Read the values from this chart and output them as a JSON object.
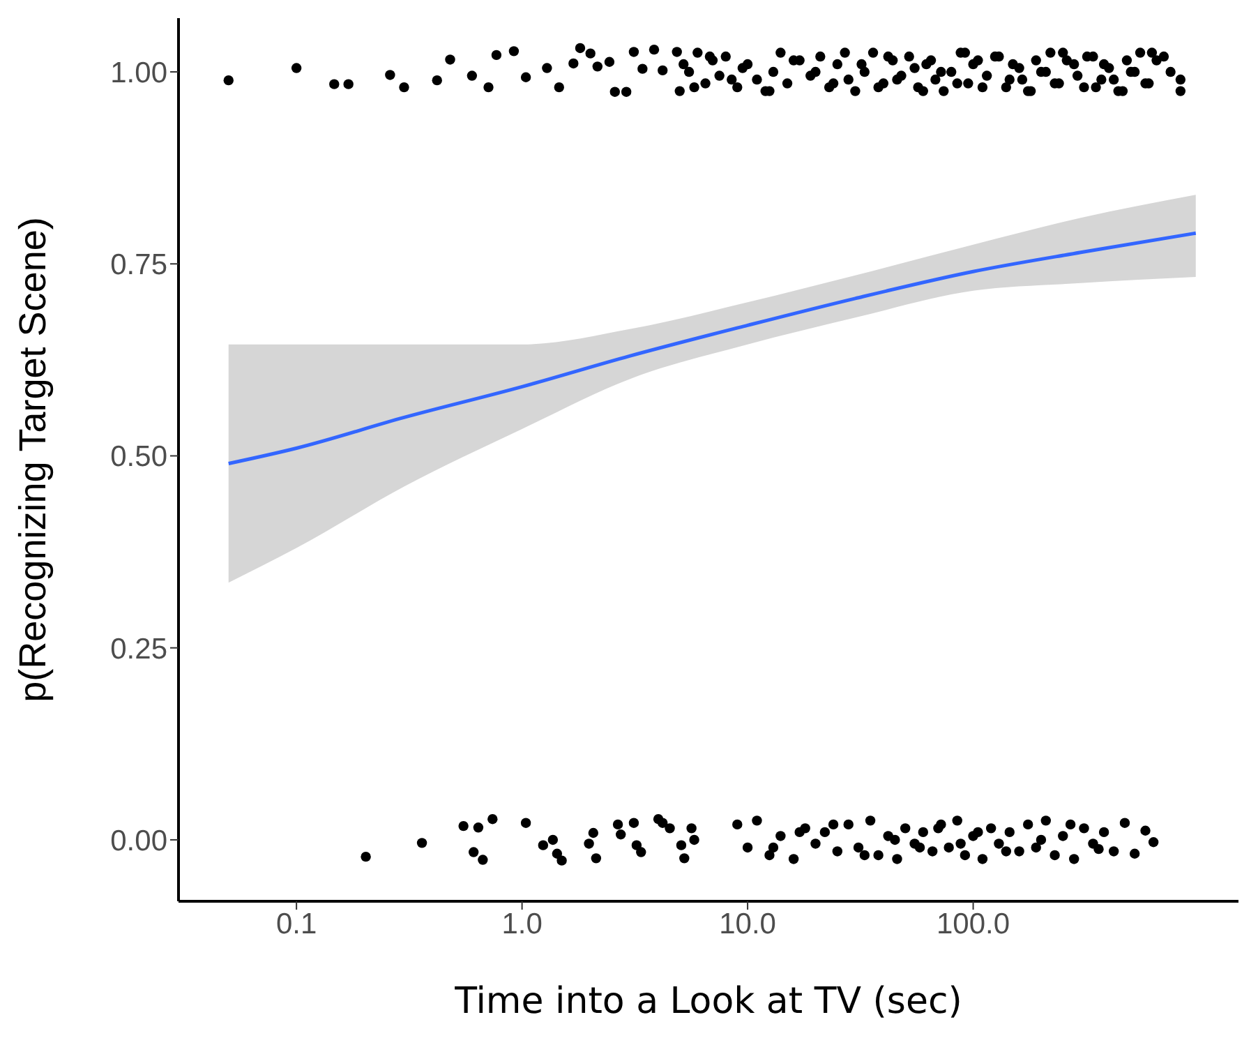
{
  "chart_data": {
    "type": "scatter",
    "xlabel": "Time into a Look at TV (sec)",
    "ylabel": "p(Recognizing Target Scene)",
    "log": "x",
    "grid": false,
    "legend": false,
    "xlim": [
      0.03,
      1500
    ],
    "xticks": [
      {
        "value": 0.1,
        "label": "0.1"
      },
      {
        "value": 1,
        "label": "1.0"
      },
      {
        "value": 10,
        "label": "10.0"
      },
      {
        "value": 100,
        "label": "100.0"
      }
    ],
    "ylim": [
      -0.08,
      1.07
    ],
    "yticks": [
      {
        "value": 0,
        "label": "0.00"
      },
      {
        "value": 0.25,
        "label": "0.25"
      },
      {
        "value": 0.5,
        "label": "0.50"
      },
      {
        "value": 0.75,
        "label": "0.75"
      },
      {
        "value": 1,
        "label": "1.00"
      }
    ],
    "series": [
      {
        "color": "#000000",
        "marker": "circle",
        "x": [
          0.05,
          0.1,
          0.147,
          0.17,
          0.26,
          0.3,
          0.42,
          0.48,
          0.6,
          0.71,
          0.77,
          0.92,
          1.04,
          1.29,
          1.46,
          1.69,
          1.81,
          2.01,
          2.16,
          2.44,
          2.58,
          2.9,
          3.13,
          3.42,
          3.85,
          4.2,
          4.86,
          5,
          5.5,
          6,
          6.5,
          7,
          7.5,
          8,
          9,
          10,
          11,
          12,
          13,
          14,
          15,
          17,
          19,
          21,
          23,
          25,
          28,
          30,
          33,
          36,
          40,
          44,
          48,
          52,
          57,
          62,
          68,
          74,
          80,
          88,
          95,
          105,
          115,
          125,
          140,
          150,
          165,
          180,
          200,
          220,
          240,
          260,
          290,
          320,
          350,
          380,
          420,
          460,
          500,
          550,
          600,
          650,
          5.2,
          5.8,
          6.8,
          8.5,
          9.5,
          12.5,
          16,
          20,
          24,
          27,
          32,
          38,
          42,
          46,
          55,
          60,
          65,
          72,
          85,
          92,
          100,
          110,
          130,
          145,
          160,
          175,
          190,
          210,
          230,
          250,
          280,
          310,
          340,
          370,
          400,
          440,
          480,
          520,
          580,
          620,
          700,
          750,
          830,
          830,
          0.203,
          0.36,
          0.55,
          0.61,
          0.64,
          0.67,
          0.74,
          1.04,
          1.24,
          1.37,
          1.43,
          1.5,
          1.98,
          2.07,
          2.13,
          2.66,
          2.74,
          3.13,
          3.22,
          3.37,
          4.02,
          4.2,
          4.52,
          5.08,
          5.24,
          5.64,
          5.8,
          9,
          10,
          11,
          12.5,
          14,
          16,
          18,
          20,
          22,
          25,
          28,
          31,
          35,
          38,
          42,
          46,
          50,
          55,
          60,
          66,
          72,
          78,
          85,
          92,
          100,
          110,
          120,
          130,
          145,
          160,
          175,
          190,
          210,
          230,
          250,
          280,
          310,
          340,
          380,
          420,
          470,
          520,
          580,
          630,
          13,
          17,
          24,
          33,
          45,
          58,
          70,
          88,
          105,
          140,
          200,
          270,
          360
        ],
        "values": [
          0.989,
          1.005,
          0.984,
          0.984,
          0.996,
          0.98,
          0.989,
          1.016,
          0.995,
          0.98,
          1.022,
          1.027,
          0.993,
          1.005,
          0.98,
          1.011,
          1.031,
          1.024,
          1.007,
          1.013,
          0.974,
          0.974,
          1.026,
          1.004,
          1.029,
          1.002,
          1.026,
          0.975,
          1.0,
          1.025,
          0.985,
          1.015,
          0.995,
          1.02,
          0.98,
          1.01,
          0.99,
          0.975,
          1.0,
          1.025,
          0.985,
          1.015,
          0.995,
          1.02,
          0.98,
          1.01,
          0.99,
          0.975,
          1.0,
          1.025,
          0.985,
          1.015,
          0.995,
          1.02,
          0.98,
          1.01,
          0.99,
          0.975,
          1.0,
          1.025,
          0.985,
          1.015,
          0.995,
          1.02,
          0.98,
          1.01,
          0.99,
          0.975,
          1.0,
          1.025,
          0.985,
          1.015,
          0.995,
          1.02,
          0.98,
          1.01,
          0.99,
          0.975,
          1.0,
          1.025,
          0.985,
          1.015,
          1.01,
          0.98,
          1.02,
          0.99,
          1.005,
          0.975,
          1.015,
          1.0,
          0.985,
          1.025,
          1.01,
          0.98,
          1.02,
          0.99,
          1.005,
          0.975,
          1.015,
          1.0,
          0.985,
          1.025,
          1.01,
          0.98,
          1.02,
          0.99,
          1.005,
          0.975,
          1.015,
          1.0,
          0.985,
          1.025,
          1.01,
          0.98,
          1.02,
          0.99,
          1.005,
          0.975,
          1.015,
          1.0,
          0.985,
          1.025,
          1.02,
          1.0,
          0.99,
          0.975,
          -0.022,
          -0.004,
          0.018,
          -0.016,
          0.016,
          -0.026,
          0.027,
          0.022,
          -0.007,
          0,
          -0.018,
          -0.027,
          -0.005,
          0.009,
          -0.024,
          0.02,
          0.007,
          0.022,
          -0.007,
          -0.016,
          0.027,
          0.022,
          0.015,
          -0.007,
          -0.024,
          0.015,
          0.0,
          0.02,
          -0.01,
          0.025,
          -0.02,
          0.005,
          -0.025,
          0.015,
          -0.005,
          0.01,
          -0.015,
          0.02,
          -0.01,
          0.025,
          -0.02,
          0.005,
          -0.025,
          0.015,
          -0.005,
          0.01,
          -0.015,
          0.02,
          -0.01,
          0.025,
          -0.02,
          0.005,
          -0.025,
          0.015,
          -0.005,
          0.01,
          -0.015,
          0.02,
          -0.01,
          0.025,
          -0.02,
          0.005,
          -0.025,
          0.015,
          -0.005,
          0.01,
          -0.015,
          0.022,
          -0.018,
          0.012,
          -0.003,
          -0.01,
          0.01,
          0.02,
          -0.02,
          0.0,
          -0.01,
          0.015,
          -0.005,
          0.01,
          -0.015,
          0.0,
          0.02,
          -0.012
        ]
      },
      {
        "type": "line",
        "color": "#3366ff",
        "marker": "none",
        "x": [
          0.05,
          0.1,
          0.3,
          1,
          3,
          10,
          30,
          100,
          300,
          970
        ],
        "values": [
          0.49,
          0.51,
          0.55,
          0.59,
          0.63,
          0.67,
          0.705,
          0.74,
          0.765,
          0.79
        ],
        "lower": [
          0.335,
          0.38,
          0.46,
          0.535,
          0.6,
          0.645,
          0.68,
          0.715,
          0.725,
          0.733
        ],
        "upper": [
          0.645,
          0.645,
          0.645,
          0.645,
          0.665,
          0.7,
          0.735,
          0.775,
          0.81,
          0.84
        ]
      }
    ]
  }
}
